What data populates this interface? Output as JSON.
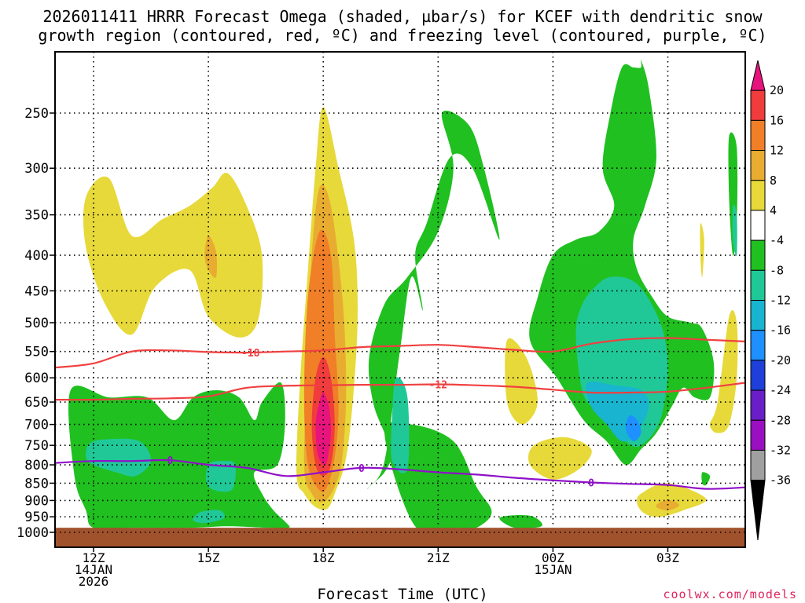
{
  "title": {
    "line1": "2026011411 HRRR Forecast Omega (shaded, µbar/s) for KCEF with dendritic snow",
    "line2": "growth region (contoured, red, ºC) and freezing level (contoured, purple, ºC)"
  },
  "xlabel": "Forecast Time (UTC)",
  "credit": "coolwx.com/models",
  "chart_data": {
    "type": "contour",
    "x_ticks": [
      {
        "hour": 12,
        "lines": [
          "12Z",
          "14JAN",
          "2026"
        ]
      },
      {
        "hour": 15,
        "lines": [
          "15Z"
        ]
      },
      {
        "hour": 18,
        "lines": [
          "18Z"
        ]
      },
      {
        "hour": 21,
        "lines": [
          "21Z"
        ]
      },
      {
        "hour": 24,
        "lines": [
          "00Z",
          "15JAN"
        ]
      },
      {
        "hour": 27,
        "lines": [
          "03Z"
        ]
      }
    ],
    "x_range_hours": [
      11,
      29
    ],
    "y_axis": {
      "scale": "log-pressure",
      "range_hPa": [
        1050,
        200
      ],
      "ticks": [
        250,
        300,
        350,
        400,
        450,
        500,
        550,
        600,
        650,
        700,
        750,
        800,
        850,
        900,
        950,
        1000
      ]
    },
    "ground_below_hPa": 985,
    "colorbar": {
      "labels": [
        "20",
        "16",
        "12",
        "8",
        "4",
        "-4",
        "-8",
        "-12",
        "-16",
        "-20",
        "-24",
        "-28",
        "-32",
        "-36"
      ],
      "colors": [
        "#e8147e",
        "#f03c3c",
        "#f07f28",
        "#e8ad30",
        "#e7d93a",
        "#ffffff",
        "#20c020",
        "#20c898",
        "#18b4d0",
        "#1e90ff",
        "#1e40d8",
        "#6a1ec8",
        "#9a10c0",
        "#a0a0a0",
        "#000000"
      ]
    },
    "omega_blobs": [
      {
        "level": "4",
        "color": "#e7d93a",
        "x": [
          11.8,
          12.4,
          13.0,
          13.8,
          14.5,
          15.1,
          15.5,
          16.0,
          16.4,
          16.3,
          15.8,
          15.0,
          14.5,
          13.6,
          13.0,
          12.3,
          11.8
        ],
        "p": [
          330,
          310,
          375,
          355,
          340,
          320,
          305,
          340,
          400,
          495,
          525,
          490,
          420,
          445,
          520,
          470,
          390
        ]
      },
      {
        "level": "8",
        "color": "#e8ad30",
        "x": [
          15.0,
          15.2,
          15.2,
          15.0,
          14.9
        ],
        "p": [
          375,
          395,
          430,
          420,
          400
        ]
      },
      {
        "level": "4",
        "color": "#e7d93a",
        "x": [
          18.0,
          18.4,
          18.8,
          18.9,
          18.8,
          18.6,
          18.3,
          18.1,
          17.8,
          17.5,
          17.3,
          17.4,
          17.6,
          17.8
        ],
        "p": [
          245,
          300,
          380,
          480,
          620,
          780,
          880,
          925,
          920,
          880,
          820,
          600,
          420,
          300
        ]
      },
      {
        "level": "8",
        "color": "#e8ad30",
        "x": [
          17.9,
          18.2,
          18.5,
          18.6,
          18.5,
          18.3,
          18.0,
          17.7,
          17.5,
          17.6,
          17.7
        ],
        "p": [
          320,
          340,
          460,
          620,
          780,
          860,
          905,
          880,
          800,
          560,
          400
        ]
      },
      {
        "level": "12",
        "color": "#f07f28",
        "x": [
          17.9,
          18.2,
          18.3,
          18.4,
          18.3,
          18.1,
          17.9,
          17.6,
          17.5,
          17.6
        ],
        "p": [
          370,
          400,
          520,
          660,
          780,
          860,
          870,
          800,
          640,
          460
        ]
      },
      {
        "level": "16",
        "color": "#f03c3c",
        "x": [
          18.0,
          18.2,
          18.3,
          18.2,
          18.0,
          17.8,
          17.7,
          17.8
        ],
        "p": [
          560,
          600,
          700,
          800,
          830,
          800,
          700,
          600
        ]
      },
      {
        "level": "20",
        "color": "#e8147e",
        "x": [
          18.0,
          18.15,
          18.2,
          18.1,
          18.0,
          17.85,
          17.8,
          17.9
        ],
        "p": [
          630,
          660,
          720,
          790,
          800,
          770,
          700,
          650
        ]
      },
      {
        "level": "-4",
        "color": "#20c020",
        "x": [
          11.4,
          12.4,
          13.4,
          14.1,
          14.6,
          15.2,
          15.8,
          16.2,
          16.4,
          16.9,
          17.0,
          16.8,
          16.2,
          16.4,
          16.7,
          17.0,
          17.1,
          16.6,
          15.5,
          14.5,
          13.0,
          12.0,
          11.8,
          11.5
        ],
        "p": [
          625,
          640,
          640,
          690,
          640,
          625,
          640,
          690,
          650,
          610,
          700,
          800,
          820,
          880,
          930,
          965,
          985,
          985,
          980,
          985,
          985,
          985,
          930,
          830
        ]
      },
      {
        "level": "-8",
        "color": "#20c898",
        "x": [
          11.9,
          12.4,
          13.2,
          13.5,
          13.1,
          12.6,
          12.0,
          11.8
        ],
        "p": [
          745,
          735,
          740,
          790,
          830,
          820,
          800,
          780
        ]
      },
      {
        "level": "-8",
        "color": "#20c898",
        "x": [
          15.0,
          15.4,
          15.7,
          15.6,
          15.0
        ],
        "p": [
          800,
          790,
          800,
          870,
          860
        ]
      },
      {
        "level": "-8",
        "color": "#20c898",
        "x": [
          14.8,
          15.3,
          15.4,
          14.9,
          14.6
        ],
        "p": [
          935,
          930,
          955,
          970,
          960
        ]
      },
      {
        "level": "-4",
        "color": "#20c020",
        "x": [
          19.2,
          19.6,
          20.0,
          20.3,
          20.6,
          20.4,
          20.7,
          21.3,
          21.9,
          22.6,
          22.2,
          21.8,
          21.1,
          21.4,
          21.0,
          20.2,
          19.6,
          19.2,
          19.3,
          19.6,
          19.8,
          19.6,
          19.2
        ],
        "p": [
          860,
          790,
          550,
          430,
          480,
          400,
          360,
          290,
          300,
          380,
          300,
          260,
          250,
          300,
          370,
          430,
          470,
          560,
          650,
          720,
          770,
          820,
          860
        ]
      },
      {
        "level": "-4",
        "color": "#20c020",
        "x": [
          19.6,
          20.3,
          21.4,
          22.0,
          22.4,
          22.0,
          21.5,
          20.4
        ],
        "p": [
          720,
          700,
          740,
          860,
          935,
          985,
          985,
          980
        ]
      },
      {
        "level": "-8",
        "color": "#20c898",
        "x": [
          19.9,
          20.2,
          20.2,
          19.8,
          19.8
        ],
        "p": [
          600,
          640,
          810,
          790,
          680
        ]
      },
      {
        "level": "-4",
        "color": "#20c020",
        "x": [
          22.6,
          23.0,
          23.5,
          23.7,
          23.0
        ],
        "p": [
          955,
          945,
          950,
          980,
          985
        ]
      },
      {
        "level": "-4",
        "color": "#20c020",
        "x": [
          25.8,
          25.5,
          25.3,
          25.6,
          25.2,
          24.6,
          24.0,
          23.6,
          23.4,
          24.1,
          24.8,
          25.4,
          25.9,
          26.3,
          26.7,
          27.1,
          27.4,
          27.7,
          28.1,
          28.2,
          27.9,
          27.6,
          27.0,
          26.6,
          26.2,
          26.1,
          26.4,
          26.7,
          26.5,
          26.3,
          26.3,
          26.1
        ],
        "p": [
          215,
          250,
          300,
          340,
          370,
          380,
          400,
          460,
          530,
          600,
          690,
          740,
          800,
          760,
          720,
          660,
          620,
          640,
          640,
          570,
          510,
          500,
          490,
          460,
          420,
          380,
          340,
          290,
          230,
          210,
          215,
          215
        ]
      },
      {
        "level": "-8",
        "color": "#20c898",
        "x": [
          25.0,
          25.5,
          26.2,
          26.8,
          27.0,
          26.8,
          26.3,
          25.9,
          25.5,
          24.9,
          24.7,
          24.6,
          24.7
        ],
        "p": [
          450,
          430,
          440,
          500,
          580,
          690,
          750,
          740,
          690,
          650,
          600,
          520,
          480
        ]
      },
      {
        "level": "-12",
        "color": "#18b4d0",
        "x": [
          24.9,
          25.6,
          26.3,
          26.5,
          26.2,
          25.8,
          25.4,
          25.0
        ],
        "p": [
          610,
          615,
          625,
          660,
          720,
          740,
          700,
          660
        ]
      },
      {
        "level": "-16",
        "color": "#1e90ff",
        "x": [
          26.0,
          26.2,
          26.3,
          26.1,
          25.9
        ],
        "p": [
          680,
          690,
          720,
          740,
          710
        ]
      },
      {
        "level": "-4",
        "color": "#20c020",
        "x": [
          28.6,
          28.8,
          28.8,
          28.7,
          28.6
        ],
        "p": [
          270,
          280,
          360,
          400,
          330
        ]
      },
      {
        "level": "-8",
        "color": "#20c898",
        "x": [
          28.7,
          28.8,
          28.8,
          28.7
        ],
        "p": [
          340,
          350,
          400,
          380
        ]
      },
      {
        "level": "-4",
        "color": "#20c020",
        "x": [
          27.9,
          28.1,
          28.0,
          27.9
        ],
        "p": [
          820,
          830,
          855,
          850
        ]
      },
      {
        "level": "4",
        "color": "#e7d93a",
        "x": [
          22.8,
          23.3,
          23.6,
          23.2,
          22.8
        ],
        "p": [
          530,
          560,
          650,
          700,
          650
        ]
      },
      {
        "level": "4",
        "color": "#e7d93a",
        "x": [
          23.5,
          24.3,
          25.0,
          24.7,
          24.0,
          23.4
        ],
        "p": [
          750,
          730,
          760,
          810,
          840,
          800
        ]
      },
      {
        "level": "4",
        "color": "#e7d93a",
        "x": [
          26.3,
          27.0,
          28.0,
          27.4,
          26.8,
          26.4,
          26.2
        ],
        "p": [
          880,
          850,
          895,
          930,
          950,
          940,
          910
        ]
      },
      {
        "level": "8",
        "color": "#e8ad30",
        "x": [
          26.8,
          27.1,
          27.3,
          27.0,
          26.7
        ],
        "p": [
          905,
          900,
          915,
          930,
          920
        ]
      },
      {
        "level": "4",
        "color": "#e7d93a",
        "x": [
          28.6,
          28.8,
          28.8,
          28.6,
          28.3,
          28.1,
          28.3
        ],
        "p": [
          490,
          500,
          600,
          700,
          720,
          700,
          650
        ]
      },
      {
        "level": "4",
        "color": "#e7d93a",
        "x": [
          27.85,
          27.95,
          27.9,
          27.85
        ],
        "p": [
          360,
          380,
          430,
          400
        ]
      }
    ],
    "contours": [
      {
        "name": "-18",
        "color": "#f04040",
        "label": "-18",
        "label_x": 16.1,
        "x": [
          11,
          12,
          13,
          14,
          15,
          16,
          17,
          18,
          19,
          20,
          21,
          22,
          23,
          24,
          25,
          26,
          27,
          28,
          29
        ],
        "p": [
          580,
          572,
          550,
          548,
          551,
          552,
          550,
          548,
          542,
          540,
          538,
          542,
          547,
          550,
          536,
          528,
          526,
          529,
          532
        ]
      },
      {
        "name": "-12",
        "color": "#f04040",
        "label": "-12",
        "label_x": 21.0,
        "x": [
          11,
          12,
          13,
          14,
          15,
          16,
          17,
          18,
          19,
          20,
          21,
          22,
          23,
          24,
          25,
          26,
          27,
          28,
          29
        ],
        "p": [
          645,
          645,
          643,
          642,
          638,
          620,
          616,
          615,
          614,
          614,
          613,
          615,
          618,
          624,
          630,
          630,
          628,
          620,
          610
        ]
      },
      {
        "name": "0",
        "color": "#9010c8",
        "label": "0",
        "label_x": 14.0,
        "label_x2": 19.0,
        "label_x3": 25.0,
        "x": [
          11,
          12,
          13,
          14,
          15,
          16,
          17,
          18,
          19,
          20,
          21,
          22,
          23,
          24,
          25,
          26,
          27,
          28,
          29
        ],
        "p": [
          795,
          790,
          790,
          788,
          800,
          808,
          830,
          820,
          808,
          812,
          820,
          826,
          835,
          842,
          848,
          852,
          855,
          866,
          862
        ]
      }
    ]
  }
}
